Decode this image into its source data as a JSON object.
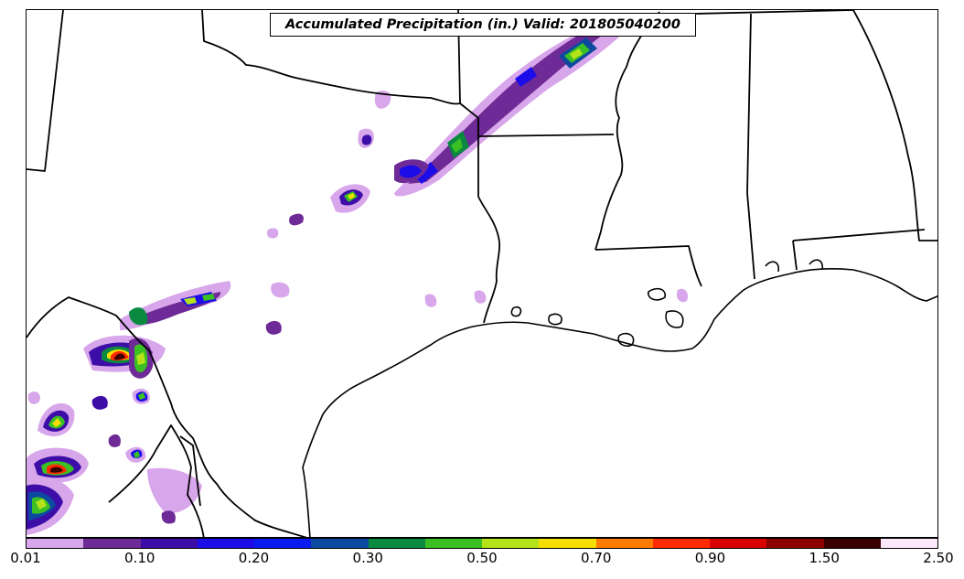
{
  "title": "Accumulated Precipitation (in.) Valid: 201805040200",
  "colorbar": {
    "colors": [
      "#d8a6ea",
      "#6e2a96",
      "#3d0da8",
      "#1c0de8",
      "#0a1cf0",
      "#0c4aa0",
      "#0a8a40",
      "#3ac024",
      "#b4e31a",
      "#f6df00",
      "#ff7b00",
      "#ff2a00",
      "#d80000",
      "#8c0000",
      "#3a0000",
      "#fde8fb"
    ],
    "tick_labels": [
      "0.01",
      "0.10",
      "0.20",
      "0.30",
      "0.50",
      "0.70",
      "0.90",
      "1.50",
      "2.50"
    ]
  },
  "layers": {
    "boundaries": "state-borders",
    "coastline": "gulf-coastline",
    "precipitation": "accumulated-precipitation-field"
  }
}
